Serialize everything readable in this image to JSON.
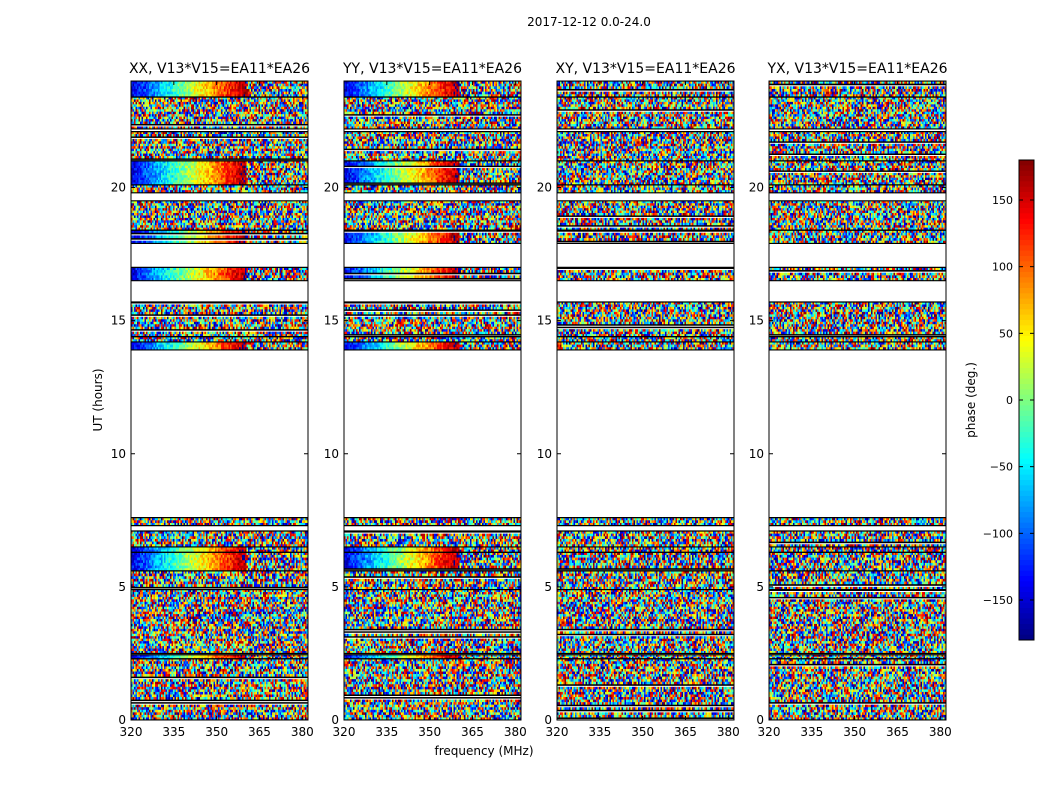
{
  "figure": {
    "suptitle": "2017-12-12 0.0-24.0",
    "xlabel": "frequency (MHz)",
    "ylabel": "UT (hours)",
    "colorbar_label": "phase (deg.)"
  },
  "chart_data": {
    "type": "heatmap",
    "title": "2017-12-12 0.0-24.0",
    "xlabel": "frequency (MHz)",
    "ylabel": "UT (hours)",
    "xlim": [
      320,
      382
    ],
    "ylim": [
      0,
      24
    ],
    "x_ticks": [
      320,
      335,
      350,
      365,
      380
    ],
    "y_ticks": [
      0,
      5,
      10,
      15,
      20
    ],
    "colorbar": {
      "label": "phase (deg.)",
      "range": [
        -180,
        180
      ],
      "ticks": [
        -150,
        -100,
        -50,
        0,
        50,
        100,
        150
      ],
      "tick_labels": [
        "−150",
        "−100",
        "−50",
        "0",
        "50",
        "100",
        "150"
      ],
      "colormap": "jet",
      "colors": [
        "#00007f",
        "#0000ff",
        "#007fff",
        "#00ffff",
        "#7fff7f",
        "#ffff00",
        "#ff7f00",
        "#ff0000",
        "#7f0000"
      ]
    },
    "panels": [
      {
        "title": "XX, V13*V15=EA11*EA26",
        "pattern": "parallel"
      },
      {
        "title": "YY, V13*V15=EA11*EA26",
        "pattern": "parallel"
      },
      {
        "title": "XY, V13*V15=EA11*EA26",
        "pattern": "cross"
      },
      {
        "title": "YX, V13*V15=EA11*EA26",
        "pattern": "cross"
      }
    ],
    "data_intervals_ut_hours": [
      [
        0.0,
        2.3
      ],
      [
        2.3,
        2.45
      ],
      [
        2.5,
        4.9
      ],
      [
        4.9,
        5.6
      ],
      [
        5.6,
        6.3
      ],
      [
        6.3,
        6.5
      ],
      [
        6.5,
        7.1
      ],
      [
        7.3,
        7.6
      ],
      [
        13.9,
        14.2
      ],
      [
        14.2,
        14.4
      ],
      [
        14.4,
        15.7
      ],
      [
        16.5,
        17.0
      ],
      [
        17.9,
        18.4
      ],
      [
        18.4,
        19.5
      ],
      [
        19.8,
        20.1
      ],
      [
        20.1,
        21.0
      ],
      [
        21.0,
        22.1
      ],
      [
        22.2,
        23.4
      ],
      [
        23.4,
        24.0
      ]
    ],
    "strong_phase_gradient_intervals_ut_hours": [
      [
        2.3,
        2.45
      ],
      [
        5.6,
        6.3
      ],
      [
        6.3,
        6.5
      ],
      [
        13.9,
        14.2
      ],
      [
        16.5,
        17.0
      ],
      [
        17.9,
        18.4
      ],
      [
        20.1,
        21.0
      ],
      [
        23.4,
        24.0
      ]
    ]
  }
}
